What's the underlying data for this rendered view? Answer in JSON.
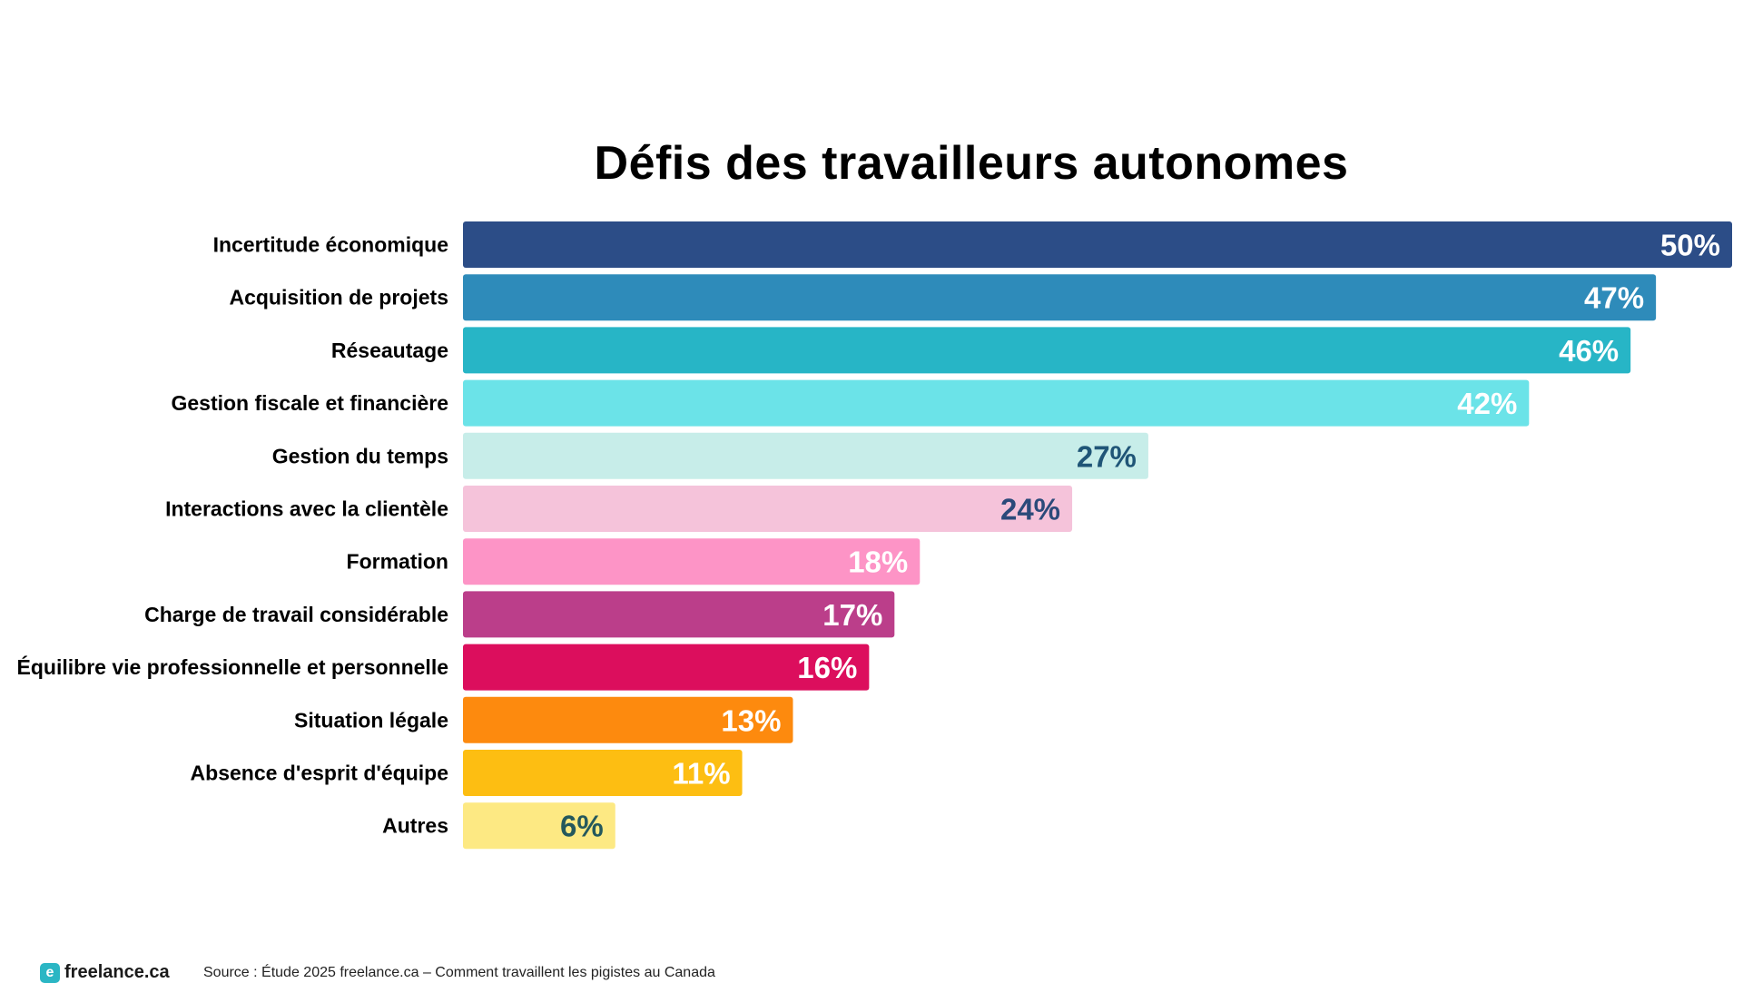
{
  "chart_data": {
    "type": "bar",
    "orientation": "horizontal",
    "title": "Défis des travailleurs autonomes",
    "categories": [
      "Incertitude économique",
      "Acquisition de projets",
      "Réseautage",
      "Gestion fiscale et financière",
      "Gestion du temps",
      "Interactions avec la clientèle",
      "Formation",
      "Charge de travail considérable",
      "Équilibre vie professionnelle et personnelle",
      "Situation légale",
      "Absence d'esprit d'équipe",
      "Autres"
    ],
    "values": [
      50,
      47,
      46,
      42,
      27,
      24,
      18,
      17,
      16,
      13,
      11,
      6
    ],
    "value_labels": [
      "50%",
      "47%",
      "46%",
      "42%",
      "27%",
      "24%",
      "18%",
      "17%",
      "16%",
      "13%",
      "11%",
      "6%"
    ],
    "bar_colors": [
      "#2c4d87",
      "#2e8bba",
      "#27b5c6",
      "#6be3e8",
      "#c7ede9",
      "#f5c3da",
      "#fd94c6",
      "#bb3e8a",
      "#dc0e5d",
      "#fd8a0e",
      "#fdbe12",
      "#fde983"
    ],
    "value_label_colors": [
      "#ffffff",
      "#ffffff",
      "#ffffff",
      "#ffffff",
      "#1f5577",
      "#2b4a7a",
      "#ffffff",
      "#ffffff",
      "#ffffff",
      "#ffffff",
      "#ffffff",
      "#24585c"
    ],
    "xlim": [
      0,
      50
    ],
    "grid": false,
    "legend": "none"
  },
  "footer": {
    "logo_text": "freelance.ca",
    "logo_icon": "freelance-logo-icon",
    "source": "Source : Étude 2025 freelance.ca – Comment travaillent les pigistes au Canada"
  }
}
